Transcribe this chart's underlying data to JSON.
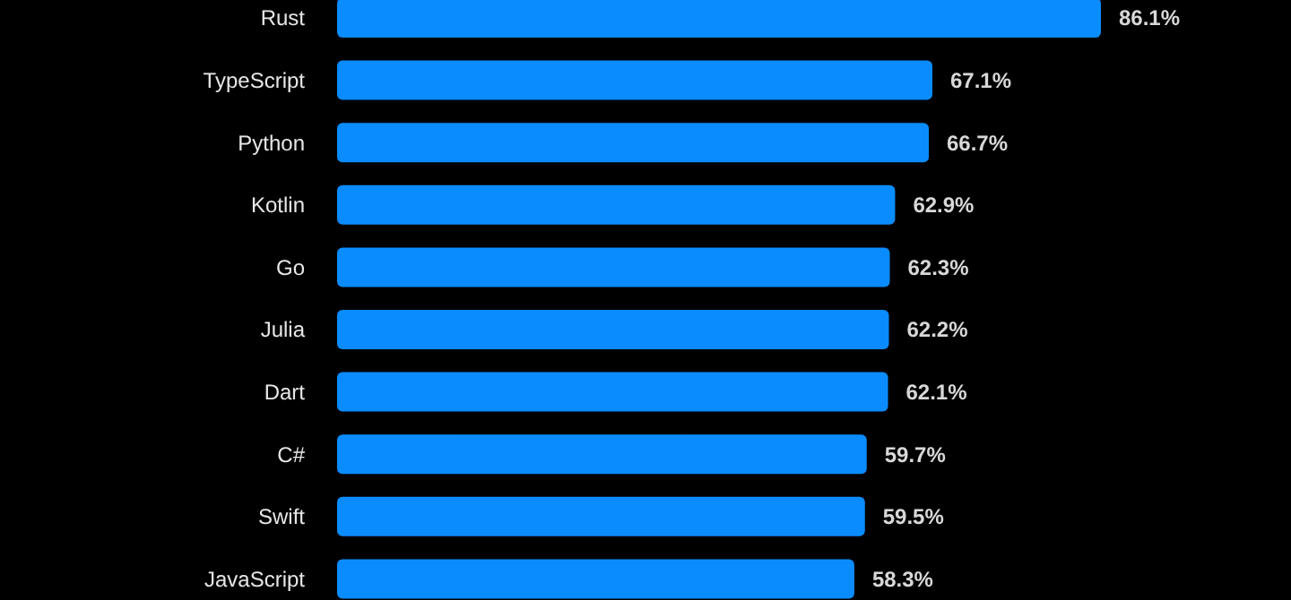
{
  "chart_data": {
    "type": "bar",
    "orientation": "horizontal",
    "categories": [
      "Rust",
      "TypeScript",
      "Python",
      "Kotlin",
      "Go",
      "Julia",
      "Dart",
      "C#",
      "Swift",
      "JavaScript"
    ],
    "values": [
      86.1,
      67.1,
      66.7,
      62.9,
      62.3,
      62.2,
      62.1,
      59.7,
      59.5,
      58.3
    ],
    "value_labels": [
      "86.1%",
      "67.1%",
      "66.7%",
      "62.9%",
      "62.3%",
      "62.2%",
      "62.1%",
      "59.7%",
      "59.5%",
      "58.3%"
    ],
    "color": "#0a8cff"
  }
}
